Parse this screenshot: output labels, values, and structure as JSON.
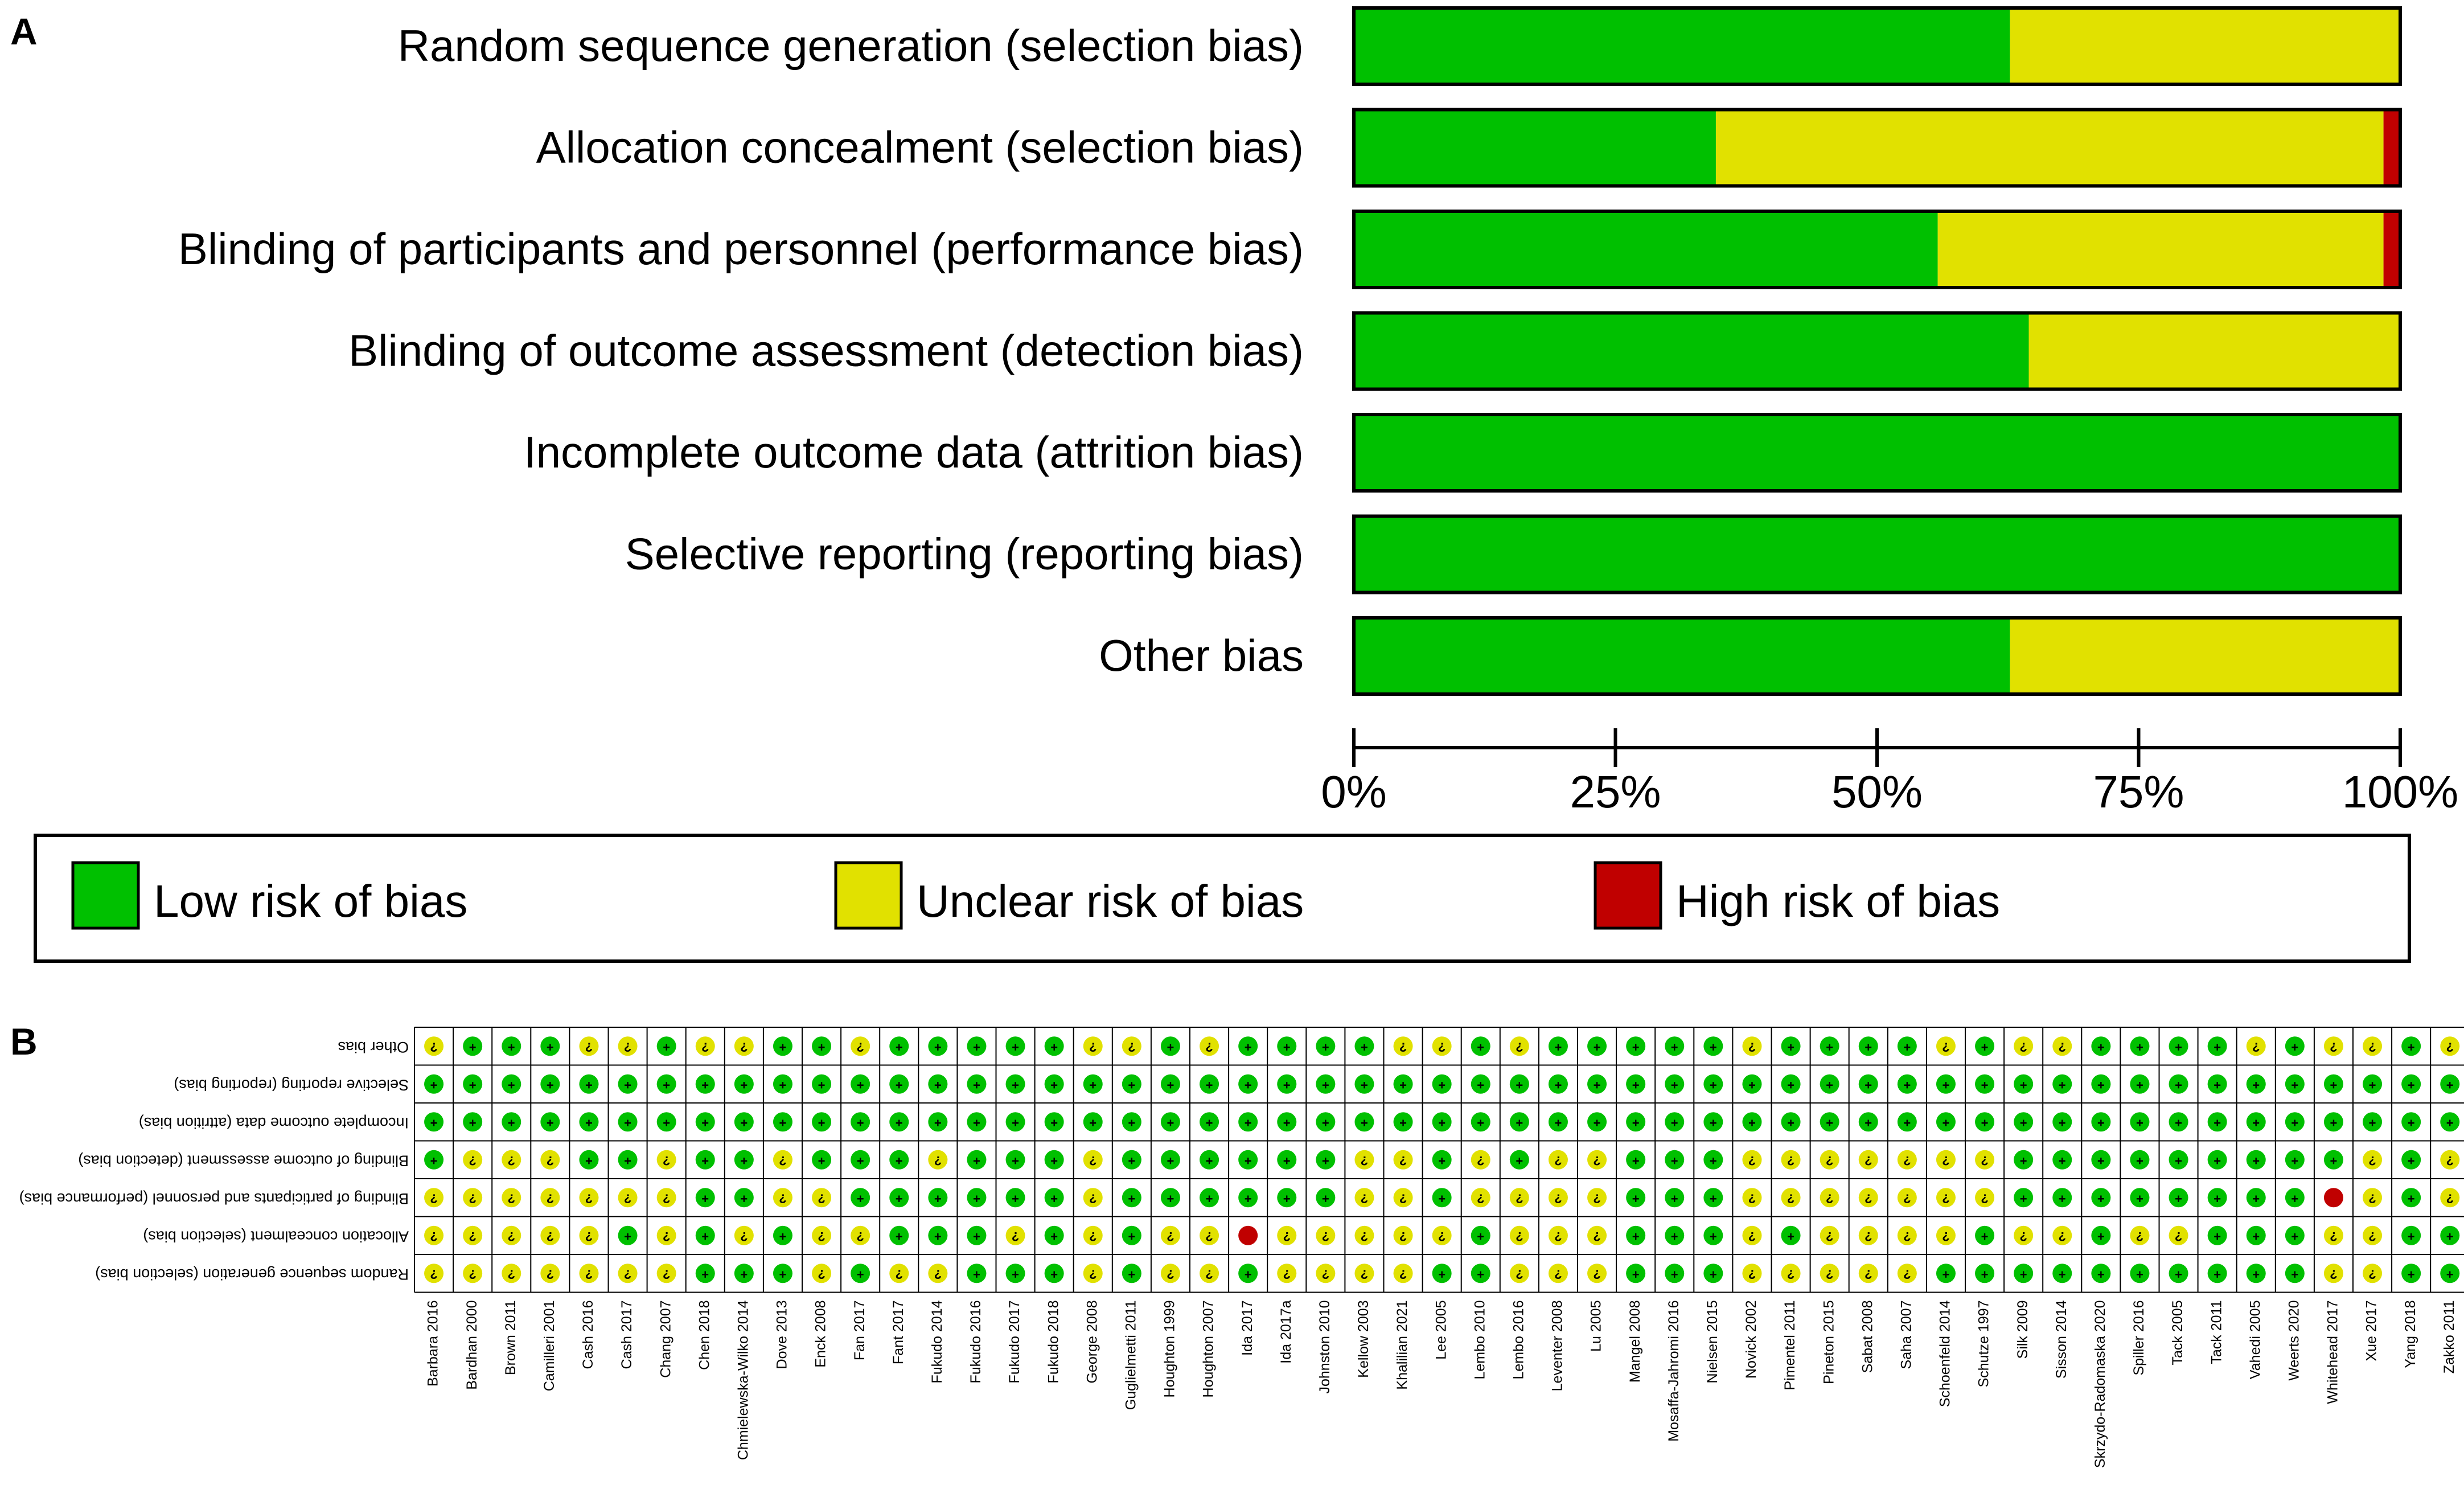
{
  "panel_labels": {
    "a": "A",
    "b": "B"
  },
  "colors": {
    "low": "#00C000",
    "unclear": "#E1E100",
    "high": "#C00000",
    "symbol": "#000000"
  },
  "symbols": {
    "low": "+",
    "unclear": "?",
    "high": "−"
  },
  "chart_data": [
    {
      "type": "stacked-bar-horizontal",
      "title": "",
      "categories": [
        "Random sequence generation (selection bias)",
        "Allocation concealment (selection bias)",
        "Blinding of participants and personnel (performance bias)",
        "Blinding of outcome assessment (detection bias)",
        "Incomplete outcome data (attrition bias)",
        "Selective reporting (reporting bias)",
        "Other bias"
      ],
      "series": [
        {
          "name": "Low risk of bias",
          "key": "low",
          "values": [
            62.7,
            34.6,
            55.8,
            64.5,
            100,
            100,
            62.7
          ]
        },
        {
          "name": "Unclear risk of bias",
          "key": "unclear",
          "values": [
            37.3,
            63.8,
            42.6,
            35.5,
            0,
            0,
            37.3
          ]
        },
        {
          "name": "High risk of bias",
          "key": "high",
          "values": [
            0,
            1.6,
            1.6,
            0,
            0,
            0,
            0
          ]
        }
      ],
      "xticks": [
        "0%",
        "25%",
        "50%",
        "75%",
        "100%"
      ],
      "xlim": [
        0,
        100
      ],
      "legend": [
        "Low risk of bias",
        "Unclear risk of bias",
        "High risk of bias"
      ]
    },
    {
      "type": "table",
      "title": "",
      "rows": [
        "Other bias",
        "Selective reporting (reporting bias)",
        "Incomplete outcome data (attrition bias)",
        "Blinding of outcome assessment (detection bias)",
        "Blinding of participants and personnel (performance bias)",
        "Allocation concealment (selection bias)",
        "Random sequence generation (selection bias)"
      ],
      "columns": [
        "Barbara 2016",
        "Bardhan 2000",
        "Brown 2011",
        "Camilleri 2001",
        "Cash 2016",
        "Cash 2017",
        "Chang 2007",
        "Chen 2018",
        "Chmielewska-Wilko 2014",
        "Dove 2013",
        "Enck 2008",
        "Fan 2017",
        "Fant 2017",
        "Fukudo 2014",
        "Fukudo 2016",
        "Fukudo 2017",
        "Fukudo 2018",
        "George 2008",
        "Guglielmetti 2011",
        "Houghton 1999",
        "Houghton 2007",
        "Ida 2017",
        "Ida 2017a",
        "Johnston 2010",
        "Kellow 2003",
        "Khalilian 2021",
        "Lee 2005",
        "Lembo 2010",
        "Lembo 2016",
        "Leventer 2008",
        "Lu 2005",
        "Mangel 2008",
        "Mosaffa-Jahromi 2016",
        "Nielsen 2015",
        "Novick 2002",
        "Pimentel 2011",
        "Pineton 2015",
        "Sabat 2008",
        "Saha 2007",
        "Schoenfeld 2014",
        "Schutze 1997",
        "Silk 2009",
        "Sisson 2014",
        "Skrzydo-Radomaska 2020",
        "Spiller 2016",
        "Tack 2005",
        "Tack 2011",
        "Vahedi 2005",
        "Weerts 2020",
        "Whitehead 2017",
        "Xue 2017",
        "Yang 2018",
        "Zakko 2011"
      ],
      "cells": [
        [
          "U",
          "L",
          "L",
          "L",
          "U",
          "U",
          "L",
          "U",
          "U",
          "L",
          "L",
          "U",
          "L",
          "L",
          "L",
          "L",
          "L",
          "U",
          "U",
          "L",
          "U",
          "L",
          "L",
          "L",
          "L",
          "U",
          "U",
          "L",
          "U",
          "L",
          "L",
          "L",
          "L",
          "L",
          "U",
          "L",
          "L",
          "L",
          "L",
          "U",
          "L",
          "U",
          "U",
          "L",
          "L",
          "L",
          "L",
          "U",
          "L",
          "U",
          "U",
          "L",
          "U"
        ],
        [
          "L",
          "L",
          "L",
          "L",
          "L",
          "L",
          "L",
          "L",
          "L",
          "L",
          "L",
          "L",
          "L",
          "L",
          "L",
          "L",
          "L",
          "L",
          "L",
          "L",
          "L",
          "L",
          "L",
          "L",
          "L",
          "L",
          "L",
          "L",
          "L",
          "L",
          "L",
          "L",
          "L",
          "L",
          "L",
          "L",
          "L",
          "L",
          "L",
          "L",
          "L",
          "L",
          "L",
          "L",
          "L",
          "L",
          "L",
          "L",
          "L",
          "L",
          "L",
          "L",
          "L"
        ],
        [
          "L",
          "L",
          "L",
          "L",
          "L",
          "L",
          "L",
          "L",
          "L",
          "L",
          "L",
          "L",
          "L",
          "L",
          "L",
          "L",
          "L",
          "L",
          "L",
          "L",
          "L",
          "L",
          "L",
          "L",
          "L",
          "L",
          "L",
          "L",
          "L",
          "L",
          "L",
          "L",
          "L",
          "L",
          "L",
          "L",
          "L",
          "L",
          "L",
          "L",
          "L",
          "L",
          "L",
          "L",
          "L",
          "L",
          "L",
          "L",
          "L",
          "L",
          "L",
          "L",
          "L"
        ],
        [
          "L",
          "U",
          "U",
          "U",
          "L",
          "L",
          "U",
          "L",
          "L",
          "U",
          "L",
          "L",
          "L",
          "U",
          "L",
          "L",
          "L",
          "U",
          "L",
          "L",
          "L",
          "L",
          "L",
          "L",
          "U",
          "U",
          "L",
          "U",
          "L",
          "U",
          "U",
          "L",
          "L",
          "L",
          "U",
          "U",
          "U",
          "U",
          "U",
          "U",
          "U",
          "L",
          "L",
          "L",
          "L",
          "L",
          "L",
          "L",
          "L",
          "L",
          "U",
          "L",
          "U"
        ],
        [
          "U",
          "U",
          "U",
          "U",
          "U",
          "U",
          "U",
          "L",
          "L",
          "U",
          "U",
          "L",
          "L",
          "L",
          "L",
          "L",
          "L",
          "U",
          "L",
          "L",
          "L",
          "L",
          "L",
          "L",
          "U",
          "U",
          "L",
          "U",
          "U",
          "U",
          "U",
          "L",
          "L",
          "L",
          "U",
          "U",
          "U",
          "U",
          "U",
          "U",
          "U",
          "L",
          "L",
          "L",
          "L",
          "L",
          "L",
          "L",
          "L",
          "H",
          "U",
          "L",
          "U"
        ],
        [
          "U",
          "U",
          "U",
          "U",
          "U",
          "L",
          "U",
          "L",
          "U",
          "L",
          "U",
          "U",
          "L",
          "L",
          "L",
          "U",
          "L",
          "U",
          "L",
          "U",
          "U",
          "H",
          "U",
          "U",
          "U",
          "U",
          "U",
          "L",
          "U",
          "U",
          "U",
          "L",
          "L",
          "L",
          "U",
          "L",
          "U",
          "U",
          "U",
          "U",
          "L",
          "U",
          "U",
          "L",
          "U",
          "U",
          "L",
          "L",
          "L",
          "U",
          "U",
          "L",
          "L"
        ],
        [
          "U",
          "U",
          "U",
          "U",
          "U",
          "U",
          "U",
          "L",
          "L",
          "L",
          "U",
          "L",
          "U",
          "U",
          "L",
          "L",
          "L",
          "U",
          "L",
          "U",
          "U",
          "L",
          "U",
          "U",
          "U",
          "U",
          "L",
          "L",
          "U",
          "U",
          "U",
          "L",
          "L",
          "L",
          "U",
          "U",
          "U",
          "U",
          "U",
          "L",
          "L",
          "L",
          "L",
          "L",
          "L",
          "L",
          "L",
          "L",
          "L",
          "U",
          "U",
          "L",
          "L"
        ]
      ]
    }
  ]
}
